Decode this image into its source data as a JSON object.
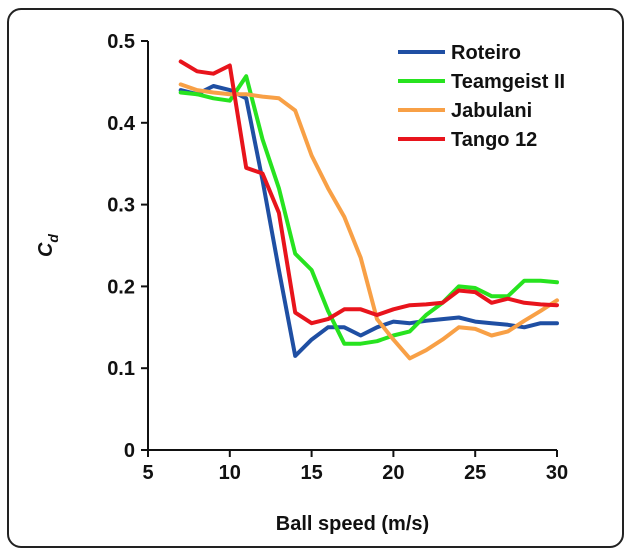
{
  "chart_data": {
    "type": "line",
    "xlabel": "Ball speed (m/s)",
    "ylabel": "C",
    "ylabel_sub": "d",
    "xlim": [
      5,
      30
    ],
    "ylim": [
      0,
      0.5
    ],
    "xticks": [
      5,
      10,
      15,
      20,
      25,
      30
    ],
    "xtick_labels": [
      "5",
      "10",
      "15",
      "20",
      "25",
      "30"
    ],
    "yticks": [
      0,
      0.1,
      0.2,
      0.3,
      0.4,
      0.5
    ],
    "ytick_labels": [
      "0",
      "0.1",
      "0.2",
      "0.3",
      "0.4",
      "0.5"
    ],
    "grid": false,
    "legend_position": "top-right",
    "series": [
      {
        "name": "Roteiro",
        "color": "#1f4fa3",
        "x": [
          7,
          8,
          9,
          10,
          11,
          12,
          13,
          14,
          15,
          16,
          17,
          18,
          19,
          20,
          21,
          22,
          23,
          24,
          25,
          26,
          27,
          28,
          29,
          30
        ],
        "y": [
          0.44,
          0.435,
          0.445,
          0.44,
          0.43,
          0.33,
          0.22,
          0.115,
          0.135,
          0.15,
          0.15,
          0.14,
          0.15,
          0.157,
          0.155,
          0.158,
          0.16,
          0.162,
          0.157,
          0.155,
          0.153,
          0.15,
          0.155,
          0.155
        ]
      },
      {
        "name": "Teamgeist II",
        "color": "#27e31f",
        "x": [
          7,
          8,
          9,
          10,
          11,
          12,
          13,
          14,
          15,
          16,
          17,
          18,
          19,
          20,
          21,
          22,
          23,
          24,
          25,
          26,
          27,
          28,
          29,
          30
        ],
        "y": [
          0.437,
          0.435,
          0.43,
          0.427,
          0.457,
          0.38,
          0.32,
          0.24,
          0.22,
          0.17,
          0.13,
          0.13,
          0.133,
          0.14,
          0.145,
          0.165,
          0.18,
          0.2,
          0.198,
          0.188,
          0.188,
          0.207,
          0.207,
          0.205
        ]
      },
      {
        "name": "Jabulani",
        "color": "#f8a046",
        "x": [
          7,
          8,
          9,
          10,
          11,
          12,
          13,
          14,
          15,
          16,
          17,
          18,
          19,
          20,
          21,
          22,
          23,
          24,
          25,
          26,
          27,
          28,
          29,
          30
        ],
        "y": [
          0.447,
          0.44,
          0.437,
          0.435,
          0.435,
          0.432,
          0.43,
          0.415,
          0.36,
          0.32,
          0.285,
          0.235,
          0.16,
          0.135,
          0.112,
          0.122,
          0.135,
          0.15,
          0.148,
          0.14,
          0.145,
          0.158,
          0.17,
          0.183
        ]
      },
      {
        "name": "Tango 12",
        "color": "#e8141c",
        "x": [
          7,
          8,
          9,
          10,
          11,
          12,
          13,
          14,
          15,
          16,
          17,
          18,
          19,
          20,
          21,
          22,
          23,
          24,
          25,
          26,
          27,
          28,
          29,
          30
        ],
        "y": [
          0.475,
          0.463,
          0.46,
          0.47,
          0.345,
          0.338,
          0.29,
          0.168,
          0.155,
          0.16,
          0.172,
          0.172,
          0.165,
          0.172,
          0.177,
          0.178,
          0.18,
          0.195,
          0.193,
          0.18,
          0.185,
          0.18,
          0.178,
          0.177
        ]
      }
    ]
  }
}
